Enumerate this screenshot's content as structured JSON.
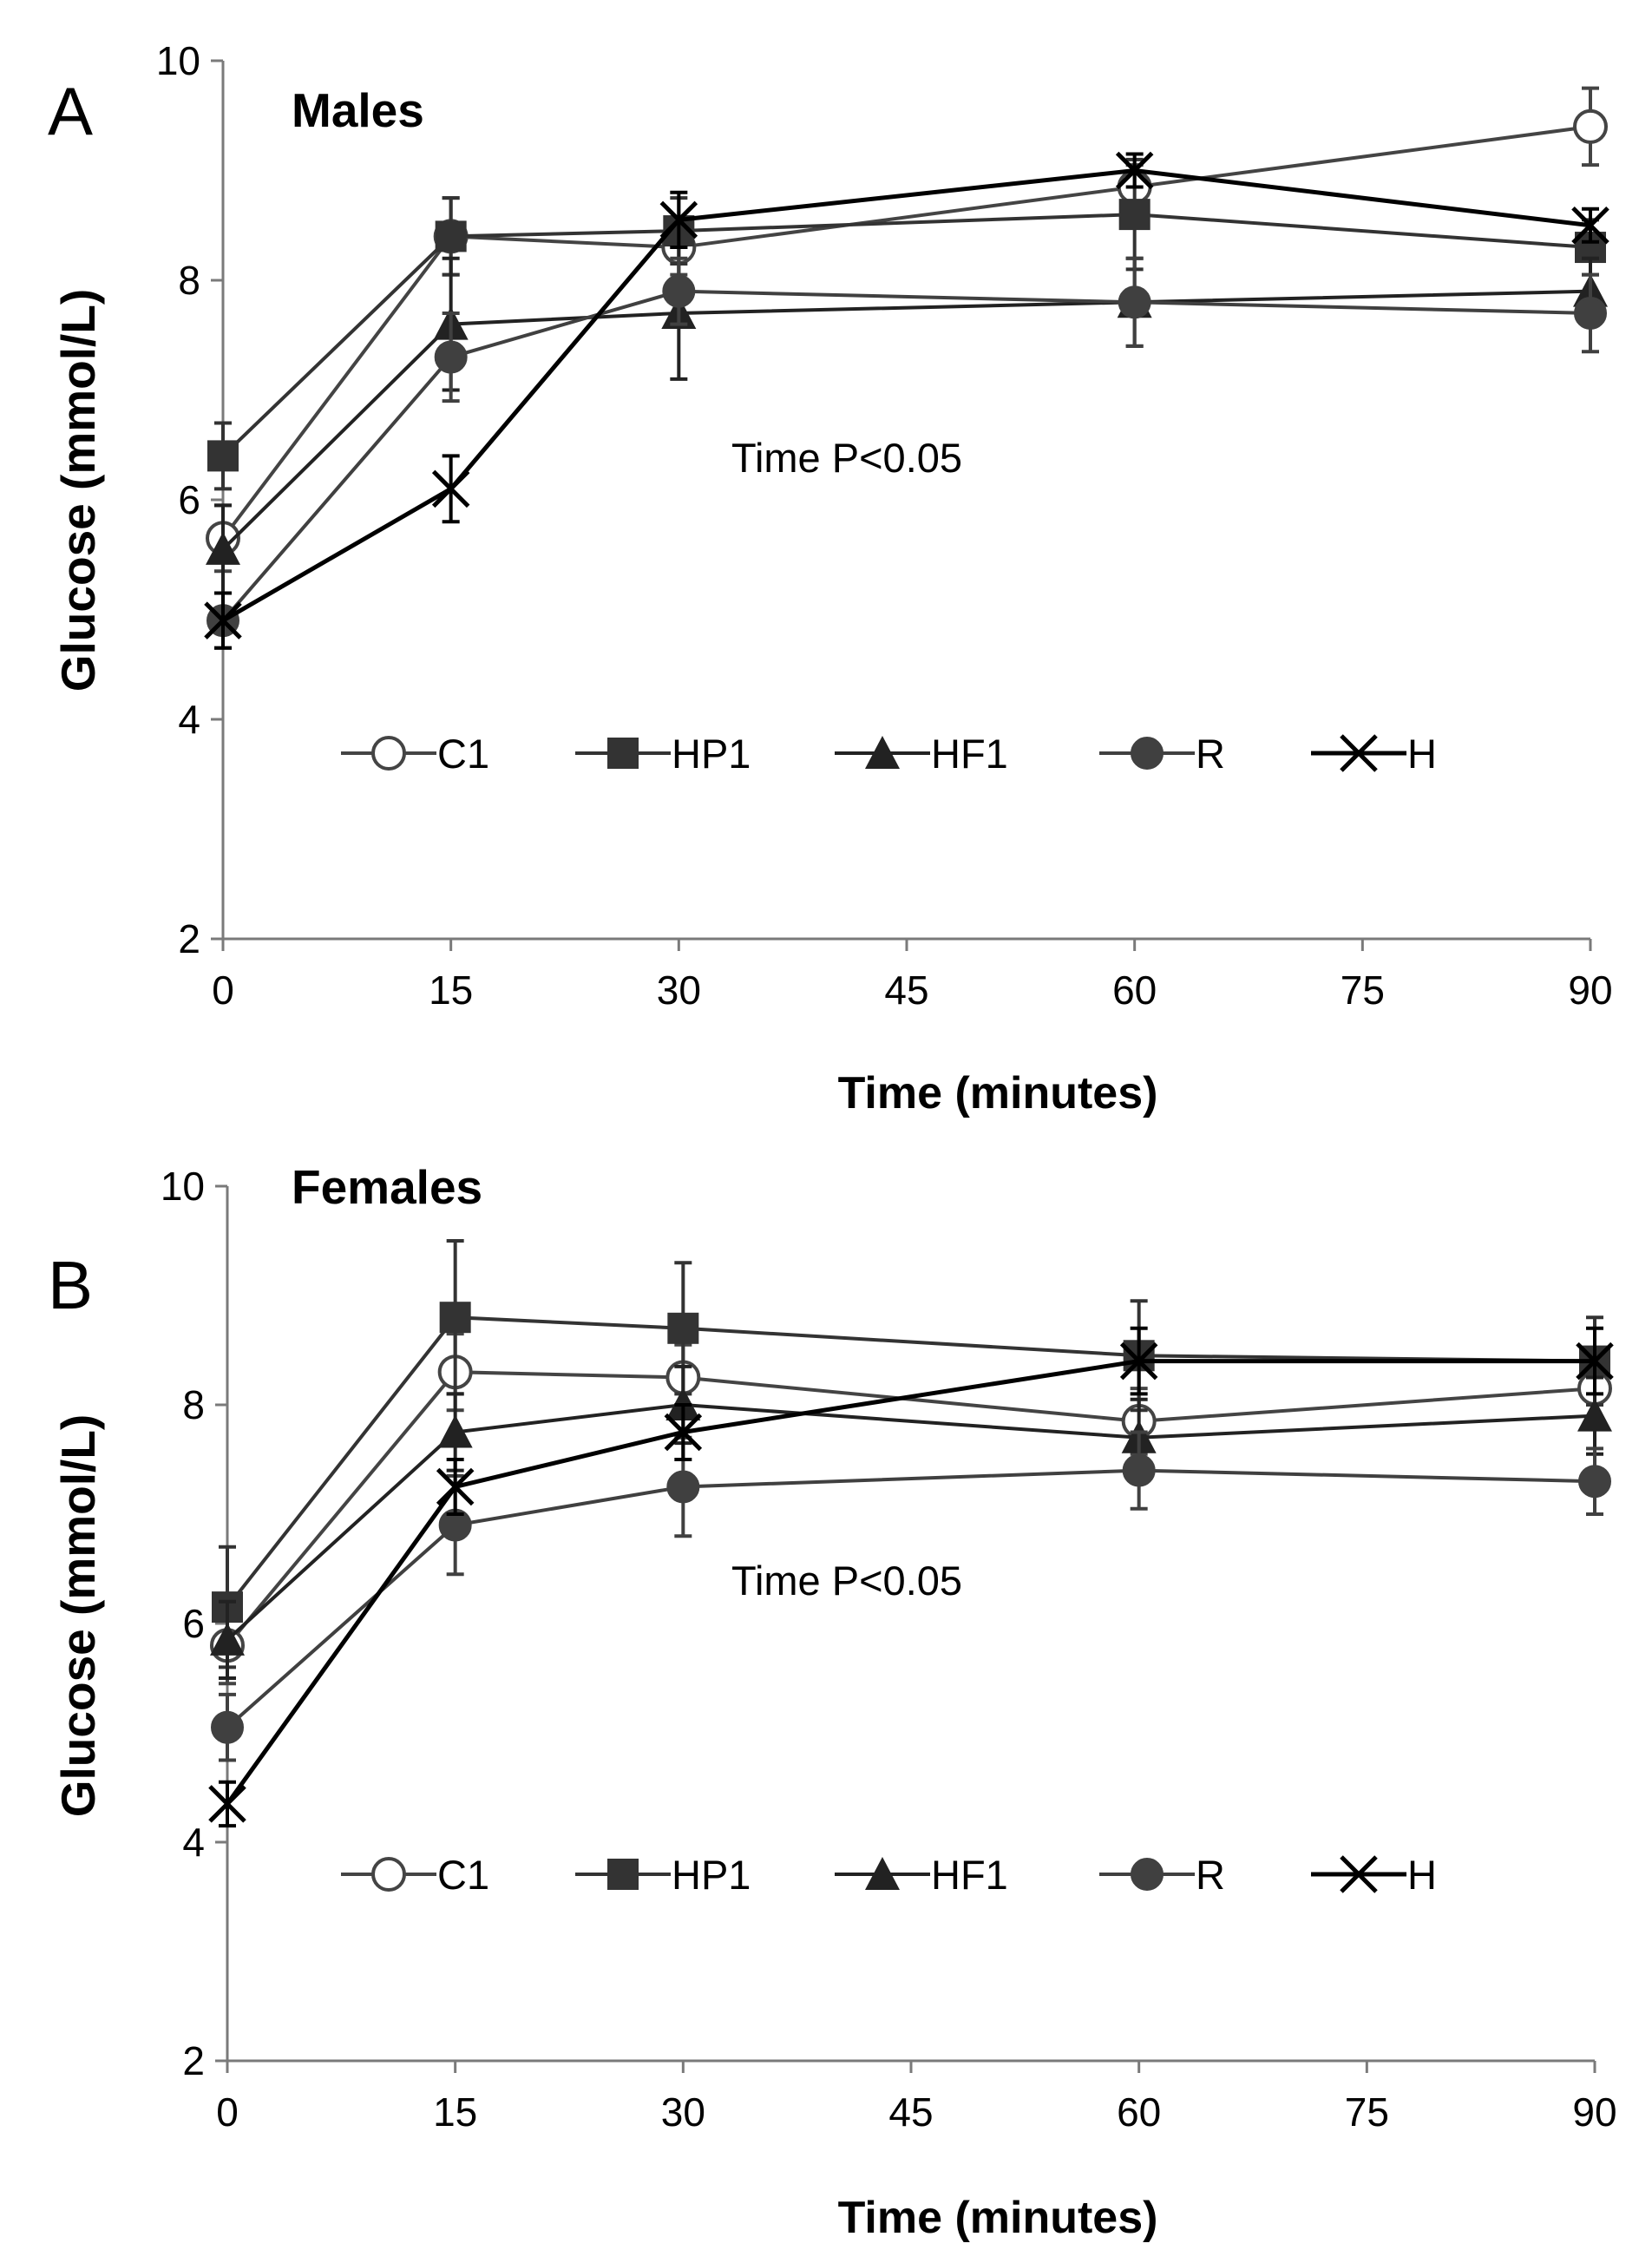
{
  "chart_data": [
    {
      "type": "line",
      "panel_letter": "A",
      "title": "Males",
      "annotation": "Time P<0.05",
      "xlabel": "Time (minutes)",
      "ylabel": "Glucose (mmol/L)",
      "xlim": [
        0,
        90
      ],
      "ylim": [
        2,
        10
      ],
      "x_ticks": [
        0,
        15,
        30,
        45,
        60,
        75,
        90
      ],
      "y_ticks": [
        2,
        4,
        6,
        8,
        10
      ],
      "x": [
        0,
        15,
        30,
        60,
        90
      ],
      "series": [
        {
          "name": "C1",
          "marker": "open-circle",
          "values": [
            5.65,
            8.4,
            8.3,
            8.85,
            9.4
          ],
          "errors": [
            0.3,
            0.35,
            0.25,
            0.2,
            0.35
          ]
        },
        {
          "name": "HP1",
          "marker": "square",
          "values": [
            6.4,
            8.4,
            8.45,
            8.6,
            8.3
          ],
          "errors": [
            0.3,
            0.35,
            0.3,
            0.5,
            0.25
          ]
        },
        {
          "name": "HF1",
          "marker": "triangle",
          "values": [
            5.55,
            7.6,
            7.7,
            7.8,
            7.9
          ],
          "errors": [
            0.4,
            0.6,
            0.6,
            0.4,
            0.3
          ]
        },
        {
          "name": "R",
          "marker": "circle",
          "values": [
            4.9,
            7.3,
            7.9,
            7.8,
            7.7
          ],
          "errors": [
            0.25,
            0.4,
            0.3,
            0.4,
            0.35
          ]
        },
        {
          "name": "H",
          "marker": "cross",
          "values": [
            4.9,
            6.1,
            8.55,
            9.0,
            8.5
          ],
          "errors": [
            0.25,
            0.3,
            0.25,
            0.15,
            0.15
          ]
        }
      ]
    },
    {
      "type": "line",
      "panel_letter": "B",
      "title": "Females",
      "annotation": "Time P<0.05",
      "xlabel": "Time (minutes)",
      "ylabel": "Glucose (mmol/L)",
      "xlim": [
        0,
        90
      ],
      "ylim": [
        2,
        10
      ],
      "x_ticks": [
        0,
        15,
        30,
        45,
        60,
        75,
        90
      ],
      "y_ticks": [
        2,
        4,
        6,
        8,
        10
      ],
      "x": [
        0,
        15,
        30,
        60,
        90
      ],
      "series": [
        {
          "name": "C1",
          "marker": "open-circle",
          "values": [
            5.8,
            8.3,
            8.25,
            7.85,
            8.15
          ],
          "errors": [
            0.35,
            0.35,
            0.3,
            0.3,
            0.3
          ]
        },
        {
          "name": "HP1",
          "marker": "square",
          "values": [
            6.15,
            8.8,
            8.7,
            8.45,
            8.4
          ],
          "errors": [
            0.55,
            0.7,
            0.6,
            0.5,
            0.4
          ]
        },
        {
          "name": "HF1",
          "marker": "triangle",
          "values": [
            5.85,
            7.75,
            8.0,
            7.7,
            7.9
          ],
          "errors": [
            0.35,
            0.35,
            0.35,
            0.35,
            0.35
          ]
        },
        {
          "name": "R",
          "marker": "circle",
          "values": [
            5.05,
            6.9,
            7.25,
            7.4,
            7.3
          ],
          "errors": [
            0.3,
            0.45,
            0.45,
            0.35,
            0.3
          ]
        },
        {
          "name": "H",
          "marker": "cross",
          "values": [
            4.35,
            7.25,
            7.75,
            8.4,
            8.4
          ],
          "errors": [
            0.2,
            0.25,
            0.25,
            0.3,
            0.3
          ]
        }
      ]
    }
  ]
}
